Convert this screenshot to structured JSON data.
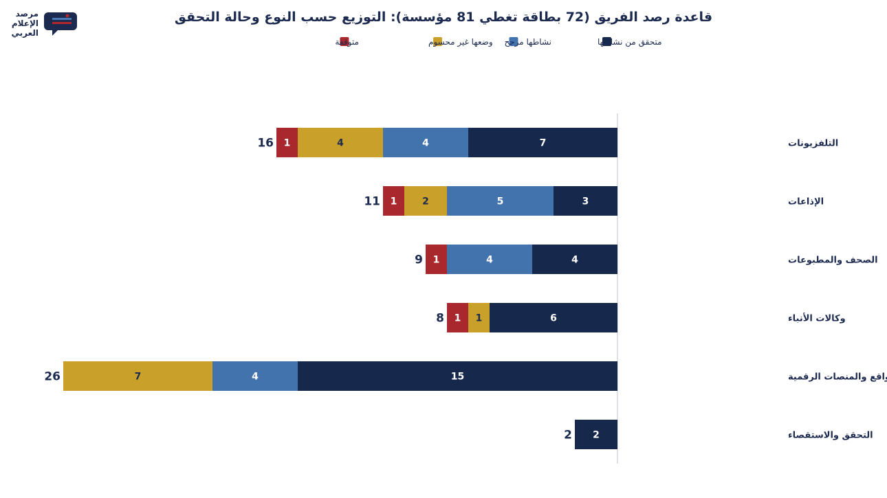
{
  "logo": {
    "lines": [
      "مرصد",
      "الإعلام",
      "العربي"
    ],
    "colors": {
      "navy": "#1c2a4f",
      "red": "#b0282d",
      "blue": "#4a7ab5"
    }
  },
  "chart_data": {
    "type": "bar",
    "orientation": "horizontal",
    "stacked": true,
    "title": "قاعدة رصد الفريق (72 بطاقة تغطي 81 مؤسسة): التوزيع حسب النوع وحالة التحقق",
    "categories": [
      "التلفزيونات",
      "الإذاعات",
      "الصحف والمطبوعات",
      "وكالات الأنباء",
      "المواقع والمنصات الرقمية",
      "التحقق والاستقصاء"
    ],
    "totals": [
      16,
      11,
      9,
      8,
      26,
      2
    ],
    "series": [
      {
        "name": "متحقق من نشاطها",
        "color": "#17284d",
        "values": [
          7,
          3,
          4,
          6,
          15,
          2
        ]
      },
      {
        "name": "نشاطها مرجح",
        "color": "#4273ad",
        "values": [
          4,
          5,
          4,
          0,
          4,
          0
        ]
      },
      {
        "name": "وضعها غير محسوم",
        "color": "#c9a12a",
        "values": [
          4,
          2,
          0,
          1,
          7,
          0
        ]
      },
      {
        "name": "متوقفة",
        "color": "#a8282d",
        "values": [
          1,
          1,
          1,
          1,
          0,
          0
        ]
      }
    ],
    "legend_position": "top-center",
    "grid": false
  }
}
